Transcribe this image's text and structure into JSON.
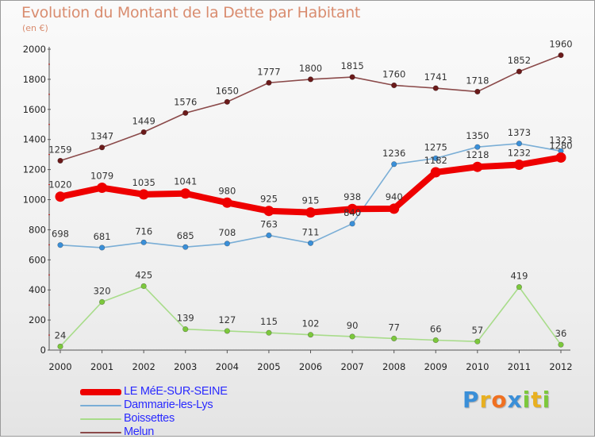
{
  "header": {
    "title": "Evolution du Montant de la Dette par Habitant",
    "unit": "(en €)"
  },
  "brand": {
    "letters": [
      "P",
      "r",
      "o",
      "x",
      "i",
      "t",
      "i"
    ],
    "colors": [
      "#3a8fd8",
      "#e8b020",
      "#f07020",
      "#3a8fd8",
      "#7cc83c",
      "#e8b020",
      "#7cc83c"
    ]
  },
  "chart_data": {
    "type": "line",
    "title": "Evolution du Montant de la Dette par Habitant",
    "subtitle": "(en €)",
    "xlabel": "",
    "ylabel": "",
    "x": [
      "2000",
      "2001",
      "2002",
      "2003",
      "2004",
      "2005",
      "2006",
      "2007",
      "2008",
      "2009",
      "2010",
      "2011",
      "2012"
    ],
    "ylim": [
      0,
      2000
    ],
    "yticks": [
      0,
      200,
      400,
      600,
      800,
      1000,
      1200,
      1400,
      1600,
      1800,
      2000
    ],
    "grid": false,
    "legend_position": "bottom-left",
    "series": [
      {
        "name": "LE MéE-SUR-SEINE",
        "values": [
          1020,
          1079,
          1035,
          1041,
          980,
          925,
          915,
          938,
          940,
          1182,
          1218,
          1232,
          1280
        ],
        "color": "#ee0000",
        "style": "thick"
      },
      {
        "name": "Dammarie-les-Lys",
        "values": [
          698,
          681,
          716,
          685,
          708,
          763,
          711,
          840,
          1236,
          1275,
          1350,
          1373,
          1323
        ],
        "color": "#7aaed6",
        "marker": "#3a8fd8"
      },
      {
        "name": "Boissettes",
        "values": [
          24,
          320,
          425,
          139,
          127,
          115,
          102,
          90,
          77,
          66,
          57,
          419,
          36
        ],
        "color": "#a8dc8a",
        "marker": "#7cc83c"
      },
      {
        "name": "Melun",
        "values": [
          1259,
          1347,
          1449,
          1576,
          1650,
          1777,
          1800,
          1815,
          1760,
          1741,
          1718,
          1852,
          1960
        ],
        "color": "#8b4a4a",
        "marker": "#6b1a1a"
      }
    ]
  }
}
